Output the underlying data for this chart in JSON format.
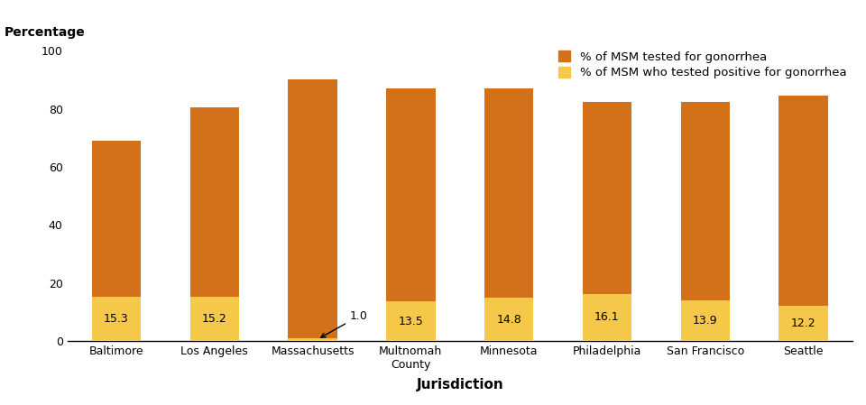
{
  "categories": [
    "Baltimore",
    "Los Angeles",
    "Massachusetts",
    "Multnomah\nCounty",
    "Minnesota",
    "Philadelphia",
    "San Francisco",
    "Seattle"
  ],
  "tested_pct": [
    69.0,
    80.5,
    90.0,
    87.0,
    87.0,
    82.5,
    82.5,
    84.5
  ],
  "positive_pct": [
    15.3,
    15.2,
    1.0,
    13.5,
    14.8,
    16.1,
    13.9,
    12.2
  ],
  "bar_color_dark": "#D2711A",
  "bar_color_light": "#F5C84A",
  "ylabel_text": "Percentage",
  "xlabel_text": "Jurisdiction",
  "legend_label1": "% of MSM tested for gonorrhea",
  "legend_label2": "% of MSM who tested positive for gonorrhea",
  "ylim": [
    0,
    100
  ],
  "yticks": [
    0,
    20,
    40,
    60,
    80,
    100
  ],
  "annotation_bar_index": 2,
  "annotation_text": "1.0"
}
